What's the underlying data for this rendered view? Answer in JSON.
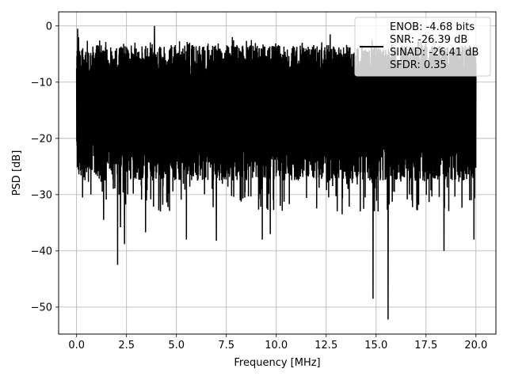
{
  "chart_data": {
    "type": "line",
    "xlabel": "Frequency [MHz]",
    "ylabel": "PSD [dB]",
    "xlim": [
      -0.9,
      21.0
    ],
    "ylim": [
      -54.8,
      2.5
    ],
    "xticks": [
      0.0,
      2.5,
      5.0,
      7.5,
      10.0,
      12.5,
      15.0,
      17.5,
      20.0
    ],
    "xtick_labels": [
      "0.0",
      "2.5",
      "5.0",
      "7.5",
      "10.0",
      "12.5",
      "15.0",
      "17.5",
      "20.0"
    ],
    "yticks": [
      0,
      -10,
      -20,
      -30,
      -40,
      -50
    ],
    "ytick_labels": [
      "0",
      "−10",
      "−20",
      "−30",
      "−40",
      "−50"
    ],
    "grid": true,
    "legend_position": "top-right",
    "legend": {
      "lines": [
        "ENOB: -4.68 bits",
        "SNR: -26.39 dB",
        "SINAD: -26.41 dB",
        "SFDR: 0.35"
      ]
    },
    "series": [
      {
        "color": "#000000",
        "x_range": [
          0.0,
          20.0
        ],
        "typical_min": -24,
        "typical_max": -7,
        "peaks": [
          {
            "x": 0.05,
            "y": -0.5
          },
          {
            "x": 0.1,
            "y": -2.0
          },
          {
            "x": 3.9,
            "y": 0.0
          },
          {
            "x": 7.8,
            "y": -2.0
          },
          {
            "x": 8.75,
            "y": -2.5
          },
          {
            "x": 11.3,
            "y": -3.0
          },
          {
            "x": 12.7,
            "y": -1.5
          },
          {
            "x": 14.8,
            "y": -2.5
          },
          {
            "x": 18.3,
            "y": -4.0
          }
        ],
        "dips": [
          {
            "x": 0.3,
            "y": -30.5
          },
          {
            "x": 1.35,
            "y": -34.5
          },
          {
            "x": 2.05,
            "y": -42.5
          },
          {
            "x": 2.2,
            "y": -35.8
          },
          {
            "x": 2.4,
            "y": -38.8
          },
          {
            "x": 3.45,
            "y": -36.7
          },
          {
            "x": 4.2,
            "y": -33.0
          },
          {
            "x": 5.5,
            "y": -38.0
          },
          {
            "x": 7.0,
            "y": -38.2
          },
          {
            "x": 9.3,
            "y": -38.0
          },
          {
            "x": 9.7,
            "y": -37.0
          },
          {
            "x": 10.2,
            "y": -32.0
          },
          {
            "x": 13.3,
            "y": -33.5
          },
          {
            "x": 14.85,
            "y": -48.5
          },
          {
            "x": 15.1,
            "y": -33.0
          },
          {
            "x": 15.6,
            "y": -52.2
          },
          {
            "x": 16.8,
            "y": -31.0
          },
          {
            "x": 18.4,
            "y": -40.0
          },
          {
            "x": 19.9,
            "y": -38.0
          }
        ]
      }
    ]
  }
}
